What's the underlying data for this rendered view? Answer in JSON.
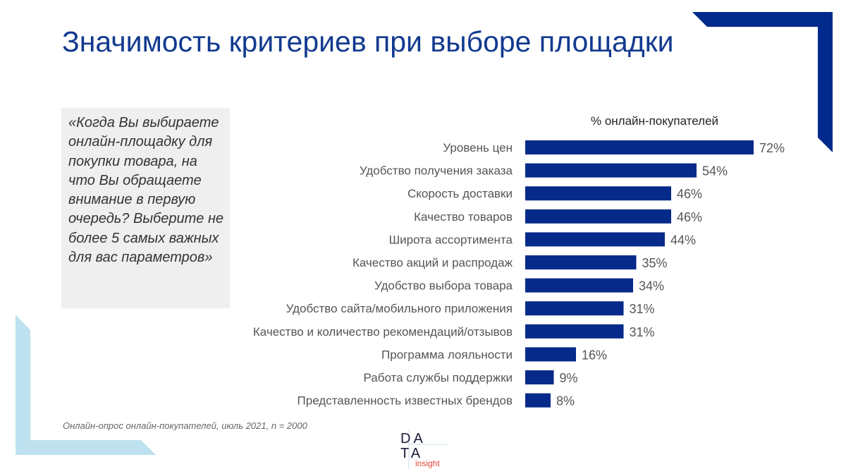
{
  "title": "Значимость критериев при выборе площадки",
  "quote": "«Когда Вы выбираете онлайн-площадку для покупки товара, на что Вы обращаете внимание в первую очередь? Выберите не более 5 самых важных для вас параметров»",
  "source": "Онлайн-опрос онлайн-покупателей, июль 2021, n = 2000",
  "logo": {
    "line1": "DA",
    "line2": "TA",
    "sub": "insight"
  },
  "colors": {
    "bar": "#062a8a",
    "corner_dark": "#002b8c",
    "corner_light": "#bde1ef",
    "title": "#123a8f"
  },
  "chart_data": {
    "type": "bar",
    "orientation": "horizontal",
    "title": "% онлайн-покупателей",
    "categories": [
      "Уровень цен",
      "Удобство получения заказа",
      "Скорость доставки",
      "Качество товаров",
      "Широта ассортимента",
      "Качество акций и распродаж",
      "Удобство выбора товара",
      "Удобство сайта/мобильного приложения",
      "Качество и количество рекомендаций/отзывов",
      "Программа лояльности",
      "Работа службы поддержки",
      "Представленность известных брендов"
    ],
    "values": [
      72,
      54,
      46,
      46,
      44,
      35,
      34,
      31,
      31,
      16,
      9,
      8
    ],
    "data_labels": [
      "72%",
      "54%",
      "46%",
      "46%",
      "44%",
      "35%",
      "34%",
      "31%",
      "31%",
      "16%",
      "9%",
      "8%"
    ],
    "grid": false
  }
}
